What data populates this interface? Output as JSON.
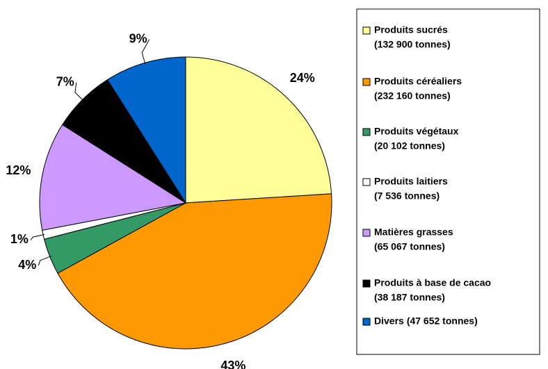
{
  "chart_data": {
    "type": "pie",
    "categories": [
      "Produits sucrés",
      "Produits céréaliers",
      "Produits végétaux",
      "Produits laitiers",
      "Matières grasses",
      "Produits à base de cacao",
      "Divers"
    ],
    "tonnages": [
      "(132 900 tonnes)",
      "(232 160 tonnes)",
      "(20 102 tonnes)",
      "(7 536 tonnes)",
      "(65 067 tonnes)",
      "(38 187 tonnes)",
      "(47 652 tonnes)"
    ],
    "values": [
      24,
      43,
      4,
      1,
      12,
      7,
      9
    ],
    "value_labels": [
      "24%",
      "43%",
      "4%",
      "1%",
      "12%",
      "7%",
      "9%"
    ],
    "colors": [
      "#ffff99",
      "#ff9900",
      "#339966",
      "#ffffff",
      "#cc99ff",
      "#000000",
      "#0066cc"
    ],
    "legend": "right"
  }
}
